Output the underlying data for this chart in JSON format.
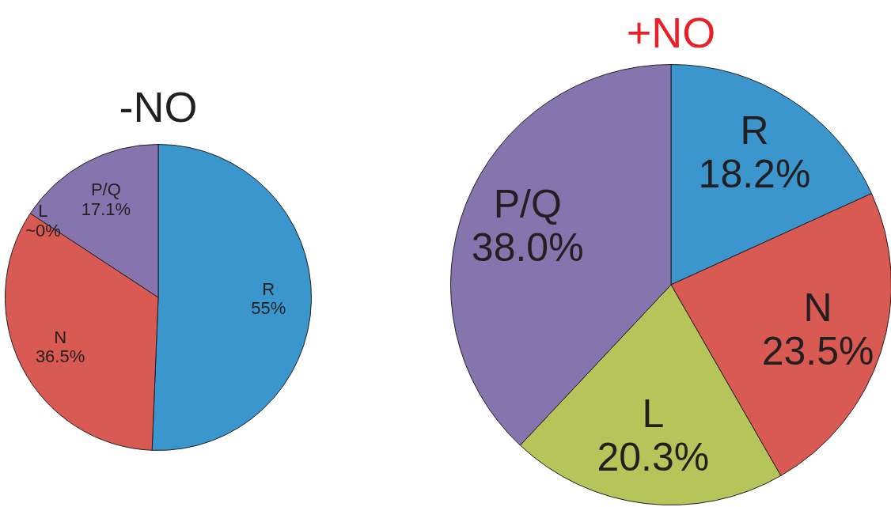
{
  "chart_data": [
    {
      "type": "pie",
      "title": "-NO",
      "categories": [
        "R",
        "N",
        "L",
        "P/Q"
      ],
      "values": [
        55,
        36.5,
        0,
        17.1
      ],
      "colors": [
        "#3a96cd",
        "#d95a52",
        "#b6c55a",
        "#8674ae"
      ],
      "value_labels": [
        "55%",
        "36.5%",
        "~0%",
        "17.1%"
      ],
      "legend": false
    },
    {
      "type": "pie",
      "title": "+NO",
      "categories": [
        "R",
        "N",
        "L",
        "P/Q"
      ],
      "values": [
        18.2,
        23.5,
        20.3,
        38.0
      ],
      "colors": [
        "#3a96cd",
        "#d95a52",
        "#b6c55a",
        "#8674ae"
      ],
      "value_labels": [
        "18.2%",
        "23.5%",
        "20.3%",
        "38.0%"
      ],
      "legend": false
    }
  ]
}
